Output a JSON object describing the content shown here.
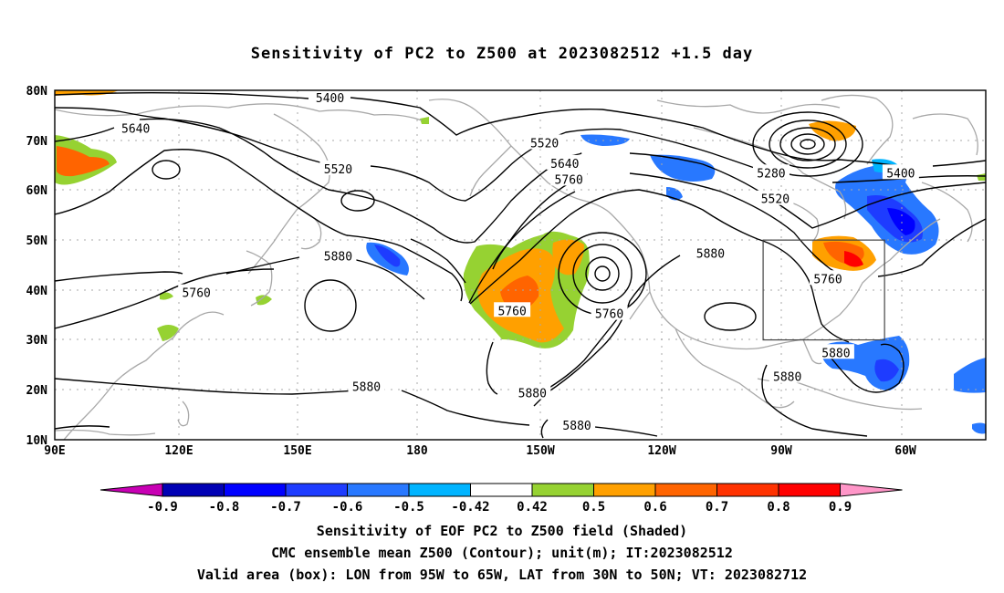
{
  "title": "Sensitivity of PC2 to Z500 at 2023082512 +1.5 day",
  "lat_labels": [
    "80N",
    "70N",
    "60N",
    "50N",
    "40N",
    "30N",
    "20N",
    "10N"
  ],
  "lon_labels": [
    "90E",
    "120E",
    "150E",
    "180",
    "150W",
    "120W",
    "90W",
    "60W"
  ],
  "contour_labels": [
    {
      "text": "5400",
      "lon": 158,
      "lat": 78.5
    },
    {
      "text": "5640",
      "lon": 110,
      "lat": 72.4
    },
    {
      "text": "5520",
      "lon": 160,
      "lat": 64.3
    },
    {
      "text": "5520",
      "lon": -149,
      "lat": 69.5
    },
    {
      "text": "5640",
      "lon": -144,
      "lat": 65.4
    },
    {
      "text": "5760",
      "lon": -143,
      "lat": 62.2
    },
    {
      "text": "5280",
      "lon": -93,
      "lat": 63.5
    },
    {
      "text": "5520",
      "lon": -92,
      "lat": 58.3
    },
    {
      "text": "5400",
      "lon": -61,
      "lat": 63.5
    },
    {
      "text": "5880",
      "lon": 160,
      "lat": 46.8
    },
    {
      "text": "5760",
      "lon": 125,
      "lat": 39.5
    },
    {
      "text": "5760",
      "lon": -157,
      "lat": 35.9
    },
    {
      "text": "5760",
      "lon": -133,
      "lat": 35.3
    },
    {
      "text": "5880",
      "lon": -108,
      "lat": 47.4
    },
    {
      "text": "5760",
      "lon": -79,
      "lat": 42.3
    },
    {
      "text": "5880",
      "lon": 167,
      "lat": 20.7
    },
    {
      "text": "5880",
      "lon": -152,
      "lat": 19.4
    },
    {
      "text": "5880",
      "lon": -77,
      "lat": 27.5
    },
    {
      "text": "5880",
      "lon": -89,
      "lat": 22.7
    },
    {
      "text": "5880",
      "lon": -141,
      "lat": 12.9
    }
  ],
  "valid_box": {
    "lon_min": -95,
    "lon_max": -65,
    "lat_min": 30,
    "lat_max": 50
  },
  "colorbar": {
    "labels": [
      "-0.9",
      "-0.8",
      "-0.7",
      "-0.6",
      "-0.5",
      "-0.42",
      "0.42",
      "0.5",
      "0.6",
      "0.7",
      "0.8",
      "0.9"
    ],
    "colors": [
      "#c800b4",
      "#0000b4",
      "#0000ff",
      "#1e3cff",
      "#2878ff",
      "#00b4ff",
      "#ffffff",
      "#96d232",
      "#ffa000",
      "#ff6400",
      "#ff3200",
      "#ff0000",
      "#ff96c8"
    ]
  },
  "captions": [
    "Sensitivity of EOF PC2 to Z500 field (Shaded)",
    "CMC ensemble mean Z500 (Contour); unit(m); IT:2023082512",
    "Valid area (box): LON from 95W to 65W, LAT from 30N to 50N; VT: 2023082712"
  ]
}
